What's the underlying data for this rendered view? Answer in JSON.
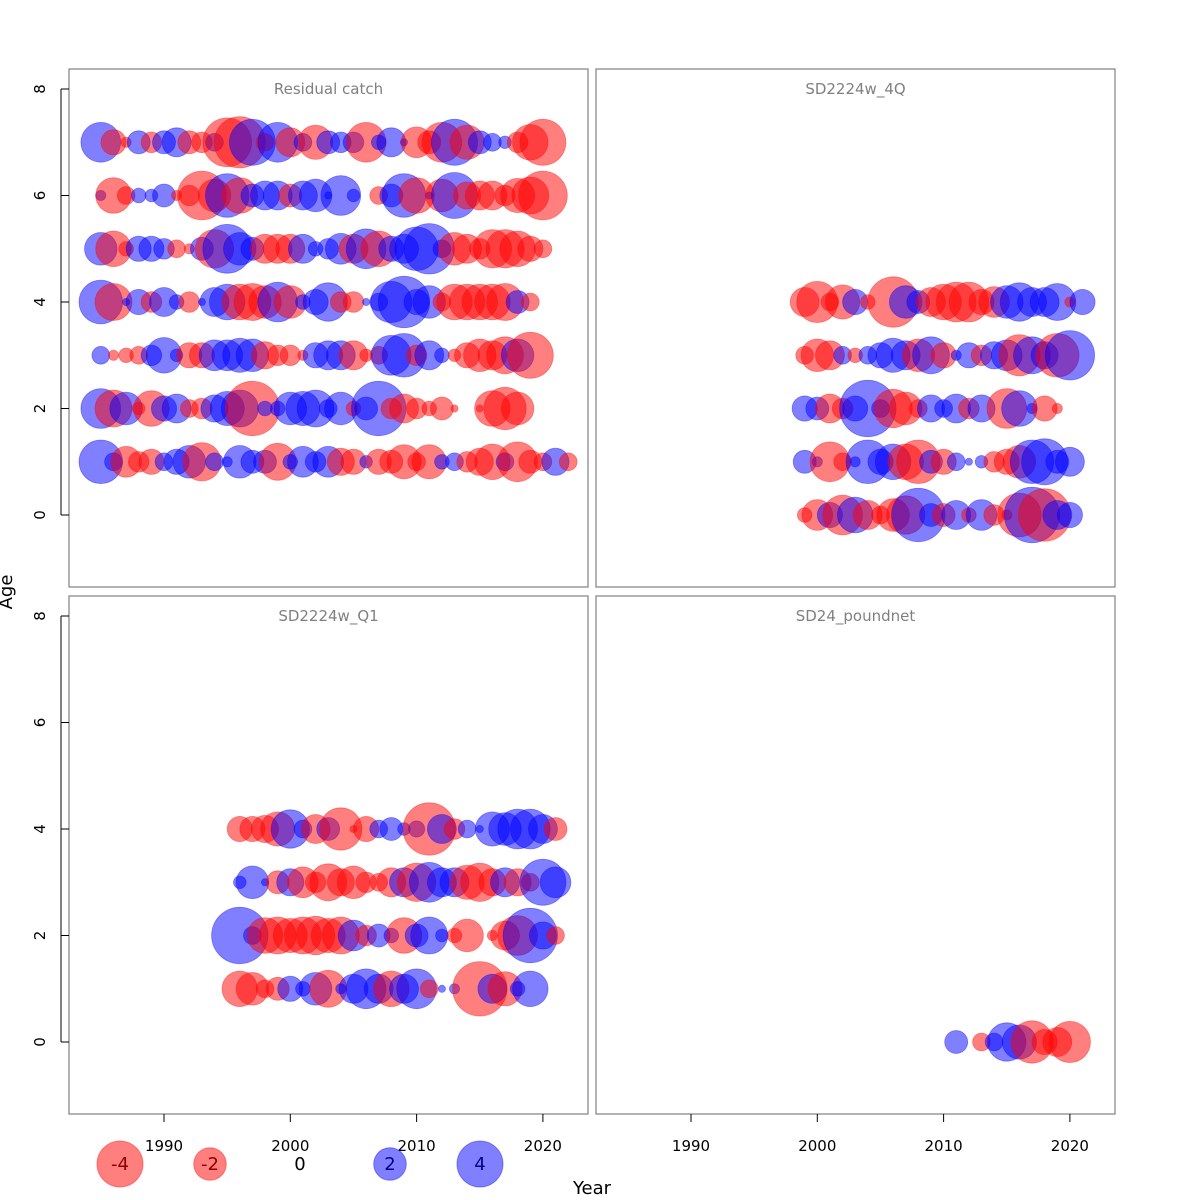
{
  "chart_data": {
    "type": "scatter",
    "subtype": "bubble",
    "title": "",
    "xlabel": "Year",
    "ylabel": "Age",
    "xlim": [
      1982.5,
      2023.5
    ],
    "ylim": [
      -1.4,
      9.0
    ],
    "x_ticks": [
      "1990",
      "2000",
      "2010",
      "2020"
    ],
    "y_ticks": [
      "0",
      "2",
      "4",
      "6",
      "8"
    ],
    "colors": {
      "negative": "#ff0000",
      "positive": "#0000ff",
      "opacity": 0.5
    },
    "legend": {
      "placement": "bottom-left",
      "entries": [
        {
          "label": "-4",
          "value": -4
        },
        {
          "label": "-2",
          "value": -2
        },
        {
          "label": "0",
          "value": 0
        },
        {
          "label": "2",
          "value": 2
        },
        {
          "label": "4",
          "value": 4
        }
      ]
    },
    "panels": [
      {
        "title": "Residual catch",
        "position": "top-left",
        "rows": [
          {
            "age": 7,
            "start_year": 1985,
            "values": [
              3.0,
              -1.2,
              -0.2,
              1.0,
              -0.8,
              1.0,
              1.6,
              -1.0,
              -0.8,
              0.6,
              -4.5,
              -5.0,
              4.0,
              -0.6,
              3.0,
              -1.6,
              0.6,
              -2.2,
              1.0,
              0.8,
              0.8,
              -3.0,
              0.4,
              1.6,
              0.1,
              -1.8,
              -1.0,
              -3.0,
              4.0,
              -2.2,
              1.0,
              0.6,
              0.3,
              -0.8,
              -2.4,
              -4.0
            ]
          },
          {
            "age": 6,
            "start_year": 1985,
            "values": [
              0.2,
              -2.4,
              -0.6,
              0.4,
              0.3,
              1.0,
              -0.2,
              -0.8,
              -4.5,
              -2.0,
              3.6,
              -2.4,
              1.0,
              1.6,
              1.6,
              -1.0,
              1.6,
              2.0,
              0.1,
              3.0,
              0.3,
              0,
              -0.6,
              1.0,
              3.6,
              -2.4,
              0.1,
              -2.0,
              4.0,
              -1.4,
              -1.6,
              -1.6,
              -0.8,
              -2.2,
              -2.6,
              -4.5
            ]
          },
          {
            "age": 5,
            "start_year": 1985,
            "values": [
              2.0,
              -2.4,
              -0.4,
              1.2,
              1.2,
              0.8,
              -0.6,
              -0.2,
              1.0,
              -2.8,
              4.5,
              2.0,
              1.0,
              -1.6,
              -1.6,
              -1.6,
              1.6,
              0.4,
              0.8,
              1.8,
              -1.6,
              3.0,
              -2.4,
              1.2,
              1.6,
              3.6,
              4.8,
              0.6,
              -2.0,
              -1.6,
              -0.8,
              -2.8,
              -2.8,
              -2.4,
              -1.2,
              -0.6
            ]
          },
          {
            "age": 4,
            "start_year": 1985,
            "values": [
              3.6,
              -2.6,
              0.1,
              1.2,
              -0.8,
              1.6,
              0.4,
              -0.8,
              0.1,
              1.6,
              2.4,
              -2.4,
              -2.6,
              -2.0,
              3.0,
              -2.0,
              0.4,
              1.2,
              2.8,
              -0.8,
              -0.8,
              0.1,
              0.6,
              3.2,
              5.0,
              1.2,
              2.0,
              -0.6,
              -2.4,
              -2.4,
              -2.4,
              -2.4,
              -2.6,
              1.0,
              -0.6,
              0
            ]
          },
          {
            "age": 3,
            "start_year": 1985,
            "values": [
              0.6,
              -0.2,
              -0.4,
              -0.6,
              0.8,
              2.4,
              0.3,
              -1.2,
              -1.2,
              1.8,
              1.8,
              2.2,
              2.0,
              -1.4,
              -0.8,
              -0.8,
              -0.2,
              1.2,
              1.6,
              1.6,
              -1.6,
              -0.3,
              -0.6,
              3.0,
              3.6,
              -0.8,
              1.6,
              0.4,
              -0.3,
              -1.2,
              -2.0,
              -1.6,
              -2.6,
              2.0,
              -4.0,
              0
            ]
          },
          {
            "age": 2,
            "start_year": 1985,
            "values": [
              3.0,
              -2.6,
              2.0,
              -0.3,
              -2.4,
              1.2,
              1.6,
              -0.6,
              -0.8,
              1.4,
              2.2,
              2.6,
              -5.6,
              0.4,
              0.4,
              2.0,
              2.2,
              2.6,
              0.6,
              2.0,
              -0.4,
              1.0,
              5.6,
              -0.8,
              -1.6,
              -0.8,
              -0.4,
              -1.0,
              -0.1,
              0,
              -0.1,
              -2.4,
              -3.4,
              -2.0,
              0,
              0
            ]
          },
          {
            "age": 1,
            "start_year": 1985,
            "values": [
              3.6,
              0.6,
              -1.8,
              -0.8,
              -1.2,
              0.6,
              1.2,
              2.0,
              -2.8,
              0.6,
              0.2,
              2.0,
              1.0,
              1.0,
              -2.6,
              0.4,
              1.8,
              0.8,
              1.8,
              -1.4,
              -1.2,
              0.3,
              -1.2,
              -1.0,
              -2.2,
              -0.6,
              -2.2,
              0.4,
              0.6,
              -0.8,
              -1.4,
              -2.4,
              0.6,
              -3.0,
              -1.0,
              -0.6,
              1.4,
              -0.6
            ]
          }
        ]
      },
      {
        "title": "SD2224w_4Q",
        "position": "top-right",
        "rows": [
          {
            "age": 4,
            "start_year": 1999,
            "values": [
              -1.6,
              -3.2,
              -0.6,
              -2.2,
              1.2,
              -0.4,
              0,
              -4.8,
              2.0,
              1.0,
              -1.6,
              -2.4,
              -3.0,
              -3.0,
              -1.2,
              -1.8,
              2.0,
              2.8,
              1.6,
              1.6,
              2.6,
              -0.2,
              1.2
            ]
          },
          {
            "age": 3,
            "start_year": 1999,
            "values": [
              -0.6,
              -2.0,
              -1.6,
              0.6,
              -0.4,
              0.6,
              1.2,
              2.2,
              1.6,
              -2.0,
              2.6,
              -1.2,
              0.2,
              1.2,
              -0.8,
              1.4,
              1.8,
              -3.2,
              2.6,
              1.4,
              -3.6,
              4.6
            ]
          },
          {
            "age": 3,
            "start_year": 1999,
            "values": []
          },
          {
            "age": 2,
            "start_year": 1999,
            "values": [
              1.2,
              1.0,
              -1.6,
              -0.8,
              1.2,
              6.0,
              0.6,
              -2.8,
              -2.0,
              -0.6,
              1.4,
              0.6,
              1.6,
              -0.8,
              1.4,
              0,
              -3.0,
              2.4,
              0.2,
              -1.2,
              -0.2
            ]
          },
          {
            "age": 1,
            "start_year": 1999,
            "values": [
              1.0,
              0.2,
              -3.0,
              -0.6,
              0.2,
              3.6,
              1.2,
              2.4,
              -2.4,
              -3.6,
              1.0,
              -1.2,
              0.6,
              0.1,
              0.3,
              -0.8,
              -1.2,
              -2.0,
              3.6,
              4.0,
              1.0,
              1.6
            ]
          },
          {
            "age": 0,
            "start_year": 1999,
            "values": [
              -0.4,
              -1.8,
              1.2,
              -3.0,
              2.4,
              -1.6,
              -0.6,
              -2.0,
              -2.8,
              5.4,
              1.0,
              -1.0,
              1.6,
              -0.4,
              1.8,
              -0.8,
              -0.2,
              -3.6,
              5.8,
              -5.2,
              1.6,
              1.2
            ]
          }
        ]
      },
      {
        "title": "SD2224w_Q1",
        "position": "bottom-left",
        "rows": [
          {
            "age": 4,
            "start_year": 1996,
            "values": [
              -1.2,
              -1.2,
              -1.4,
              -2.2,
              2.8,
              0.6,
              -1.6,
              1.0,
              -3.4,
              -0.1,
              -1.2,
              0.6,
              1.0,
              0.3,
              0.5,
              -5.2,
              1.6,
              -0.8,
              0.6,
              0.1,
              2.2,
              2.0,
              3.0,
              3.0,
              1.6,
              -1.0
            ]
          },
          {
            "age": 3,
            "start_year": 1996,
            "values": [
              0.3,
              2.0,
              0.1,
              -1.0,
              1.4,
              -1.8,
              -0.8,
              -2.6,
              -1.4,
              -2.0,
              -0.8,
              -0.6,
              -1.6,
              1.6,
              -2.8,
              3.0,
              1.6,
              1.6,
              -2.2,
              -2.8,
              -1.4,
              1.6,
              -1.4,
              -0.6,
              4.0,
              1.8
            ]
          },
          {
            "age": 2,
            "start_year": 1996,
            "values": [
              6.0,
              0.6,
              -2.4,
              -2.6,
              -2.2,
              -2.6,
              -2.8,
              -2.2,
              -2.6,
              1.8,
              -0.8,
              1.0,
              0.4,
              -2.4,
              1.0,
              2.6,
              0.3,
              -0.4,
              -2.0,
              0,
              -0.2,
              -1.6,
              -3.0,
              5.6,
              1.4,
              -0.6
            ]
          },
          {
            "age": 1,
            "start_year": 1996,
            "values": [
              -2.4,
              -2.0,
              -0.6,
              -1.0,
              1.2,
              0.4,
              2.0,
              -2.6,
              0.2,
              1.6,
              3.0,
              1.6,
              -2.4,
              1.6,
              3.0,
              -0.6,
              0.1,
              0.2,
              0,
              -5.6,
              1.6,
              -2.2,
              0.4,
              2.4
            ]
          }
        ]
      },
      {
        "title": "SD24_poundnet",
        "position": "bottom-right",
        "rows": [
          {
            "age": 0,
            "start_year": 2011,
            "values": [
              1.0,
              0,
              -0.6,
              0.6,
              2.8,
              2.2,
              -3.4,
              -1.2,
              -1.6,
              -3.2
            ]
          }
        ]
      }
    ]
  },
  "ui": {
    "axis_title_x": "Year",
    "axis_title_y": "Age",
    "legend_labels": [
      "-4",
      "-2",
      "0",
      "2",
      "4"
    ]
  }
}
